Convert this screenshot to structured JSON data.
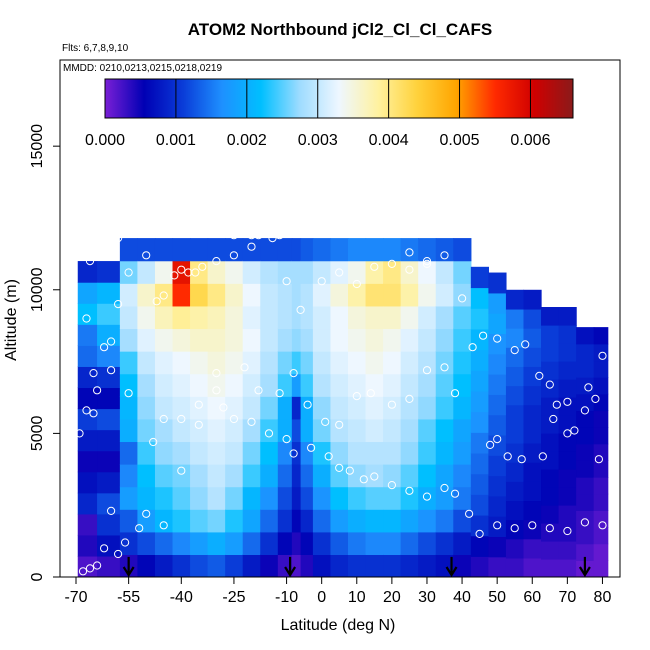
{
  "chart_data": {
    "type": "heatmap",
    "title": "ATOM2 Northbound jCl2_Cl_Cl_CAFS",
    "flights_note": "Flts: 6,7,8,9,10",
    "dates_note": "MMDD: 0210,0213,0215,0218,0219",
    "xlabel": "Latitude (deg N)",
    "ylabel": "Altitude (m)",
    "xlim": [
      -70,
      85
    ],
    "ylim": [
      0,
      18000
    ],
    "x_ticks": [
      -70,
      -55,
      -40,
      -25,
      -10,
      0,
      10,
      20,
      30,
      40,
      50,
      60,
      70,
      80
    ],
    "y_ticks": [
      0,
      5000,
      10000,
      15000
    ],
    "colorbar": {
      "min": 0.0,
      "max": 0.0066,
      "tick_values": [
        0,
        0.001,
        0.002,
        0.003,
        0.004,
        0.005,
        0.006
      ],
      "tick_labels": [
        "0.000",
        "0.001",
        "0.002",
        "0.003",
        "0.004",
        "0.005",
        "0.006"
      ],
      "color_stops": [
        "#7a1fd6",
        "#0000b4",
        "#0a3cd8",
        "#1e90ff",
        "#00bfff",
        "#9fdcff",
        "#eef7ff",
        "#fff2a0",
        "#ffd23c",
        "#ffa500",
        "#ff2a00",
        "#d00000",
        "#8b1a1a"
      ]
    },
    "field_lat_samples": [
      -68,
      -60,
      -55,
      -50,
      -45,
      -40,
      -35,
      -30,
      -25,
      -20,
      -15,
      -10,
      -7,
      -5,
      0,
      5,
      10,
      15,
      20,
      25,
      30,
      35,
      40,
      45,
      50,
      55,
      60,
      65,
      70,
      75,
      80
    ],
    "field_top_altitude": [
      11000,
      11000,
      11800,
      11800,
      11800,
      11800,
      11800,
      11800,
      11800,
      11800,
      11800,
      11800,
      11800,
      11800,
      11800,
      11800,
      11800,
      11800,
      11800,
      11800,
      11800,
      11800,
      11800,
      10800,
      10600,
      10000,
      10000,
      9400,
      9400,
      8700,
      8700
    ],
    "field_columns": [
      [
        0.0002,
        0.0004,
        0.0003,
        0.0009,
        0.0007,
        0.0005,
        0.0008,
        0.0011,
        0.0006,
        0.0009,
        0.0014,
        0.0015,
        0.0022,
        0.0019,
        0.0009
      ],
      [
        0.0003,
        0.0007,
        0.001,
        0.0012,
        0.0008,
        0.0005,
        0.0008,
        0.0012,
        0.0006,
        0.001,
        0.0016,
        0.002,
        0.0024,
        0.0021,
        0.001
      ],
      [
        0.0004,
        0.001,
        0.0013,
        0.0018,
        0.0016,
        0.0014,
        0.002,
        0.0021,
        0.0022,
        0.0024,
        0.0028,
        0.003,
        0.0031,
        0.0026,
        0.0012
      ],
      [
        0.0006,
        0.0012,
        0.0018,
        0.0021,
        0.0022,
        0.0024,
        0.0026,
        0.0027,
        0.0028,
        0.003,
        0.0032,
        0.0034,
        0.0036,
        0.003,
        0.0012
      ],
      [
        0.0008,
        0.0014,
        0.0021,
        0.0023,
        0.0025,
        0.0027,
        0.0028,
        0.003,
        0.0031,
        0.0032,
        0.0034,
        0.0037,
        0.004,
        0.0034,
        0.0012
      ],
      [
        0.001,
        0.0016,
        0.0023,
        0.0025,
        0.0026,
        0.0028,
        0.003,
        0.0031,
        0.0032,
        0.0033,
        0.0035,
        0.0039,
        0.0055,
        0.0058,
        0.0012
      ],
      [
        0.0012,
        0.0018,
        0.0025,
        0.0027,
        0.0028,
        0.003,
        0.0031,
        0.0032,
        0.0033,
        0.0034,
        0.0036,
        0.0038,
        0.0043,
        0.004,
        0.0012
      ],
      [
        0.0013,
        0.002,
        0.0026,
        0.0029,
        0.003,
        0.0031,
        0.0032,
        0.0033,
        0.0034,
        0.0035,
        0.0036,
        0.0037,
        0.004,
        0.0036,
        0.0012
      ],
      [
        0.0011,
        0.0018,
        0.0023,
        0.0026,
        0.0028,
        0.003,
        0.0031,
        0.0032,
        0.0033,
        0.0034,
        0.0035,
        0.0035,
        0.0036,
        0.0034,
        0.0012
      ],
      [
        0.0008,
        0.0014,
        0.0019,
        0.0021,
        0.0024,
        0.0026,
        0.0028,
        0.003,
        0.0031,
        0.0032,
        0.0033,
        0.0032,
        0.0033,
        0.0031,
        0.0012
      ],
      [
        0.0005,
        0.001,
        0.0014,
        0.0017,
        0.002,
        0.0022,
        0.0024,
        0.0026,
        0.0028,
        0.0029,
        0.003,
        0.003,
        0.003,
        0.0029,
        0.0012
      ],
      [
        0.0003,
        0.0006,
        0.001,
        0.0012,
        0.0014,
        0.0016,
        0.002,
        0.002,
        0.0024,
        0.0026,
        0.0028,
        0.0029,
        0.0029,
        0.0028,
        0.0012
      ],
      [
        0.0002,
        0.0004,
        0.0006,
        0.0008,
        0.0009,
        0.001,
        0.0012,
        0.0009,
        0.0018,
        0.0024,
        0.0027,
        0.0028,
        0.0028,
        0.0028,
        0.0012
      ],
      [
        0.0004,
        0.0006,
        0.0009,
        0.0012,
        0.0014,
        0.0016,
        0.002,
        0.002,
        0.0024,
        0.0026,
        0.0028,
        0.0029,
        0.0029,
        0.0028,
        0.0013
      ],
      [
        0.0007,
        0.001,
        0.0014,
        0.0017,
        0.002,
        0.0023,
        0.0026,
        0.0027,
        0.0029,
        0.003,
        0.0031,
        0.0031,
        0.0032,
        0.003,
        0.0014
      ],
      [
        0.0009,
        0.0013,
        0.0018,
        0.0022,
        0.0025,
        0.0027,
        0.0029,
        0.003,
        0.0031,
        0.0032,
        0.0033,
        0.0033,
        0.0035,
        0.0032,
        0.0015
      ],
      [
        0.001,
        0.0015,
        0.002,
        0.0024,
        0.0027,
        0.0029,
        0.003,
        0.0031,
        0.0032,
        0.0033,
        0.0034,
        0.0035,
        0.0038,
        0.0034,
        0.0016
      ],
      [
        0.001,
        0.0016,
        0.0021,
        0.0025,
        0.0028,
        0.0029,
        0.0031,
        0.0032,
        0.0033,
        0.0034,
        0.0035,
        0.0036,
        0.0041,
        0.0038,
        0.0016
      ],
      [
        0.001,
        0.0016,
        0.0021,
        0.0025,
        0.0027,
        0.0029,
        0.003,
        0.0031,
        0.0032,
        0.0033,
        0.0034,
        0.0036,
        0.0041,
        0.004,
        0.0016
      ],
      [
        0.0009,
        0.0014,
        0.0019,
        0.0023,
        0.0025,
        0.0027,
        0.0028,
        0.0029,
        0.003,
        0.0031,
        0.0032,
        0.0034,
        0.0038,
        0.0036,
        0.0015
      ],
      [
        0.0008,
        0.0012,
        0.0017,
        0.002,
        0.0022,
        0.0024,
        0.0025,
        0.0027,
        0.0028,
        0.0029,
        0.003,
        0.0031,
        0.0034,
        0.0033,
        0.0014
      ],
      [
        0.0007,
        0.001,
        0.0015,
        0.0018,
        0.0019,
        0.0021,
        0.0022,
        0.0024,
        0.0025,
        0.0026,
        0.0027,
        0.0028,
        0.0031,
        0.003,
        0.0013
      ],
      [
        0.0005,
        0.0008,
        0.0012,
        0.0015,
        0.0016,
        0.0018,
        0.0019,
        0.0021,
        0.0022,
        0.0023,
        0.0024,
        0.0025,
        0.0027,
        0.0026,
        0.0012
      ],
      [
        0.0004,
        0.0006,
        0.001,
        0.0012,
        0.0013,
        0.0014,
        0.0015,
        0.0017,
        0.0018,
        0.0019,
        0.002,
        0.0021,
        0.0023,
        0.0022,
        0.0011
      ],
      [
        0.0003,
        0.0005,
        0.0008,
        0.0009,
        0.001,
        0.0011,
        0.0012,
        0.0013,
        0.0014,
        0.0015,
        0.0016,
        0.0017,
        0.0019,
        0.0018,
        0.001
      ],
      [
        0.0003,
        0.0004,
        0.0006,
        0.0007,
        0.0008,
        0.0009,
        0.001,
        0.0011,
        0.0011,
        0.0012,
        0.0013,
        0.0014,
        0.0016,
        0.0015,
        0.0009
      ],
      [
        0.0002,
        0.0003,
        0.0005,
        0.0006,
        0.0007,
        0.0007,
        0.0008,
        0.0009,
        0.0009,
        0.001,
        0.0011,
        0.0012,
        0.0013,
        0.0012,
        0.0008
      ],
      [
        0.0002,
        0.0003,
        0.0004,
        0.0005,
        0.0006,
        0.0006,
        0.0007,
        0.0007,
        0.0008,
        0.0008,
        0.0009,
        0.001,
        0.0011,
        0.0011,
        0.0008
      ],
      [
        0.0002,
        0.0003,
        0.0004,
        0.0004,
        0.0005,
        0.0005,
        0.0006,
        0.0006,
        0.0007,
        0.0007,
        0.0008,
        0.0009,
        0.001,
        0.001,
        0.0008
      ],
      [
        0.0001,
        0.0002,
        0.0003,
        0.0003,
        0.0004,
        0.0004,
        0.0005,
        0.0005,
        0.0006,
        0.0006,
        0.0007,
        0.0008,
        0.0009,
        0.0009,
        0.0007
      ],
      [
        0.0001,
        0.0001,
        0.0002,
        0.0002,
        0.0003,
        0.0003,
        0.0004,
        0.0004,
        0.0005,
        0.0005,
        0.0006,
        0.0007,
        0.0008,
        0.0008,
        0.0006
      ]
    ],
    "sample_points": [
      [
        -68,
        200
      ],
      [
        -66,
        300
      ],
      [
        -64,
        400
      ],
      [
        -62,
        1000
      ],
      [
        -60,
        2300
      ],
      [
        -58,
        800
      ],
      [
        -56,
        1200
      ],
      [
        -52,
        1700
      ],
      [
        -50,
        2200
      ],
      [
        -45,
        1800
      ],
      [
        -40,
        3700
      ],
      [
        -35,
        6000
      ],
      [
        -30,
        6500
      ],
      [
        -25,
        5500
      ],
      [
        -20,
        5400
      ],
      [
        -15,
        5000
      ],
      [
        -10,
        4800
      ],
      [
        -8,
        4300
      ],
      [
        -3,
        4500
      ],
      [
        2,
        4200
      ],
      [
        5,
        3800
      ],
      [
        8,
        3700
      ],
      [
        12,
        3400
      ],
      [
        15,
        3500
      ],
      [
        20,
        3200
      ],
      [
        25,
        3000
      ],
      [
        30,
        2800
      ],
      [
        35,
        3100
      ],
      [
        38,
        2900
      ],
      [
        42,
        2200
      ],
      [
        45,
        1500
      ],
      [
        50,
        1800
      ],
      [
        55,
        1700
      ],
      [
        60,
        1800
      ],
      [
        65,
        1700
      ],
      [
        70,
        1600
      ],
      [
        75,
        1900
      ],
      [
        80,
        1800
      ],
      [
        -67,
        9000
      ],
      [
        -65,
        5700
      ],
      [
        -64,
        6500
      ],
      [
        -62,
        8000
      ],
      [
        -60,
        8200
      ],
      [
        -58,
        9500
      ],
      [
        -55,
        10600
      ],
      [
        -50,
        11200
      ],
      [
        -47,
        9600
      ],
      [
        -45,
        9800
      ],
      [
        -42,
        10500
      ],
      [
        -40,
        10700
      ],
      [
        -38,
        10600
      ],
      [
        -36,
        10600
      ],
      [
        -34,
        10800
      ],
      [
        -30,
        11000
      ],
      [
        -25,
        11200
      ],
      [
        -20,
        11500
      ],
      [
        -14,
        11800
      ],
      [
        -10,
        10300
      ],
      [
        -6,
        9300
      ],
      [
        0,
        10300
      ],
      [
        5,
        10600
      ],
      [
        10,
        10200
      ],
      [
        15,
        10800
      ],
      [
        20,
        10900
      ],
      [
        25,
        10700
      ],
      [
        30,
        11000
      ],
      [
        35,
        11200
      ],
      [
        40,
        9700
      ],
      [
        43,
        8000
      ],
      [
        46,
        8400
      ],
      [
        50,
        8300
      ],
      [
        55,
        7900
      ],
      [
        58,
        8100
      ],
      [
        62,
        7000
      ],
      [
        65,
        6700
      ],
      [
        67,
        6000
      ],
      [
        70,
        5000
      ],
      [
        72,
        5100
      ],
      [
        75,
        5800
      ],
      [
        78,
        6200
      ],
      [
        80,
        7700
      ],
      [
        -69,
        5000
      ],
      [
        -67,
        5800
      ],
      [
        -65,
        7100
      ],
      [
        -60,
        7200
      ],
      [
        -55,
        6400
      ],
      [
        -48,
        4700
      ],
      [
        -45,
        5500
      ],
      [
        -40,
        5500
      ],
      [
        -35,
        5300
      ],
      [
        -30,
        7100
      ],
      [
        -28,
        5900
      ],
      [
        -22,
        7300
      ],
      [
        -18,
        6500
      ],
      [
        -12,
        6400
      ],
      [
        -8,
        7100
      ],
      [
        -4,
        6000
      ],
      [
        1,
        5400
      ],
      [
        5,
        5300
      ],
      [
        10,
        6300
      ],
      [
        14,
        6400
      ],
      [
        20,
        6000
      ],
      [
        25,
        6200
      ],
      [
        30,
        7200
      ],
      [
        35,
        7300
      ],
      [
        38,
        6400
      ],
      [
        48,
        4600
      ],
      [
        50,
        4800
      ],
      [
        53,
        4200
      ],
      [
        57,
        4100
      ],
      [
        63,
        4200
      ],
      [
        66,
        5500
      ],
      [
        70,
        6100
      ],
      [
        76,
        6600
      ],
      [
        79,
        4100
      ],
      [
        -66,
        11000
      ],
      [
        -62,
        11200
      ],
      [
        -60,
        12000
      ],
      [
        -58,
        11800
      ],
      [
        -25,
        11900
      ],
      [
        -20,
        11900
      ],
      [
        -18,
        11900
      ],
      [
        -12,
        11900
      ],
      [
        25,
        11300
      ],
      [
        30,
        10900
      ]
    ],
    "flight_markers_lat": [
      -55,
      -9,
      37,
      75
    ]
  }
}
